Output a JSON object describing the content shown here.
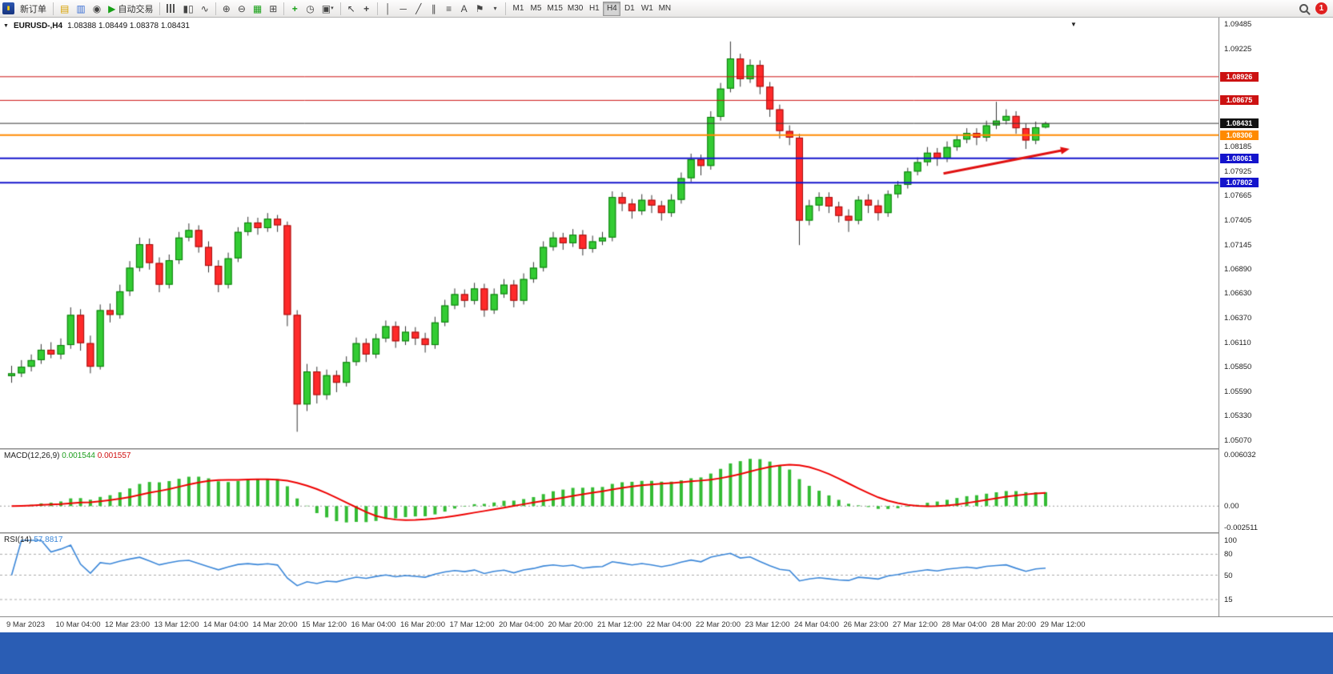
{
  "taskbar": {
    "color": "#2a5db4"
  },
  "toolbar": {
    "new_order": "新订单",
    "autotrade": "自动交易",
    "timeframes": [
      "M1",
      "M5",
      "M15",
      "M30",
      "H1",
      "H4",
      "D1",
      "W1",
      "MN"
    ],
    "active_timeframe": "H4",
    "notification_count": "1"
  },
  "icons": {
    "dropdown_triangle": "▼",
    "play": "▶",
    "market_watch": "▤",
    "data_window": "▥",
    "community": "◉",
    "candles_chart": "▮▯",
    "line_chart": "∿",
    "zoom_in": "⊕",
    "zoom_out": "⊖",
    "tile_windows": "▦",
    "new_chart": "⊞",
    "indicators": "+",
    "period": "◷",
    "templates": "▣",
    "chart_shift": "↦",
    "cursor": "↖",
    "crosshair": "+",
    "vline": "│",
    "hline": "─",
    "trendline": "╱",
    "channel": "∥",
    "fibonacci": "≡",
    "text_tool": "A",
    "label_tool": "⚑",
    "shapes_dropdown": "▾"
  },
  "chart": {
    "symbol": "EURUSD-,H4",
    "ohlc": "1.08388 1.08449 1.08378 1.08431"
  },
  "macd": {
    "title": "MACD(12,26,9)",
    "value1": "0.001544",
    "value2": "0.001557",
    "axis_top": "0.006032",
    "axis_zero": "0.00",
    "axis_bottom": "-0.002511"
  },
  "rsi": {
    "title": "RSI(14)",
    "value": "57.8817",
    "axis_labels": [
      "100",
      "80",
      "50",
      "15"
    ]
  },
  "chart_data": {
    "type": "candlestick",
    "title": "EURUSD-,H4",
    "symbol": "EURUSD",
    "timeframe": "H4",
    "current_ohlc": {
      "open": 1.08388,
      "high": 1.08449,
      "low": 1.08378,
      "close": 1.08431
    },
    "y_axis": {
      "min": 1.0507,
      "max": 1.09485,
      "gridlines": [
        "1.09485",
        "1.09225",
        "1.08185",
        "1.07925",
        "1.07665",
        "1.07405",
        "1.07145",
        "1.06890",
        "1.06630",
        "1.06370",
        "1.06110",
        "1.05850",
        "1.05590",
        "1.05330",
        "1.05070"
      ]
    },
    "x_labels": [
      "9 Mar 2023",
      "10 Mar 04:00",
      "12 Mar 23:00",
      "13 Mar 12:00",
      "14 Mar 04:00",
      "14 Mar 20:00",
      "15 Mar 12:00",
      "16 Mar 04:00",
      "16 Mar 20:00",
      "17 Mar 12:00",
      "20 Mar 04:00",
      "20 Mar 20:00",
      "21 Mar 12:00",
      "22 Mar 04:00",
      "22 Mar 20:00",
      "23 Mar 12:00",
      "24 Mar 04:00",
      "26 Mar 23:00",
      "27 Mar 12:00",
      "28 Mar 04:00",
      "28 Mar 20:00",
      "29 Mar 12:00"
    ],
    "levels": [
      {
        "price": 1.08926,
        "label": "1.08926",
        "line": "#cc1111",
        "badge": "#cc1111",
        "width": 1
      },
      {
        "price": 1.08675,
        "label": "1.08675",
        "line": "#cc1111",
        "badge": "#cc1111",
        "width": 1
      },
      {
        "price": 1.08431,
        "label": "1.08431",
        "line": "#333333",
        "badge": "#111111",
        "width": 1,
        "current": true
      },
      {
        "price": 1.08306,
        "label": "1.08306",
        "line": "#ff8a00",
        "badge": "#ff8a00",
        "width": 2
      },
      {
        "price": 1.08061,
        "label": "1.08061",
        "line": "#1414cc",
        "badge": "#1414cc",
        "width": 2
      },
      {
        "price": 1.07802,
        "label": "1.07802",
        "line": "#1414cc",
        "badge": "#1414cc",
        "width": 2
      }
    ],
    "annotations": [
      {
        "type": "arrow",
        "color": "#e01010",
        "from_bar": 95,
        "from_price": 1.079,
        "to_bar": 107.8,
        "to_price": 1.0816
      }
    ],
    "colors": {
      "up": "#33cc33",
      "up_border": "#0d7a0d",
      "down": "#ff2a2a",
      "down_border": "#a01010",
      "wick": "#333333",
      "macd_hist": "#33bb33",
      "macd_signal": "#ee0000",
      "rsi_line": "#3a86d8"
    },
    "indicators": [
      {
        "name": "MACD",
        "params": [
          12,
          26,
          9
        ],
        "display_values": [
          0.001544,
          0.001557
        ],
        "scale_max": 0.006032,
        "scale_min": -0.002511
      },
      {
        "name": "RSI",
        "params": [
          14
        ],
        "display_value": 57.8817,
        "levels": [
          80,
          50,
          15
        ],
        "scale": [
          0,
          100
        ]
      }
    ],
    "candles": [
      [
        1.0575,
        1.0586,
        1.0568,
        1.0578
      ],
      [
        1.0578,
        1.0592,
        1.0574,
        1.0585
      ],
      [
        1.0585,
        1.0598,
        1.058,
        1.0592
      ],
      [
        1.0592,
        1.0609,
        1.0588,
        1.0603
      ],
      [
        1.0603,
        1.0611,
        1.0594,
        1.0598
      ],
      [
        1.0598,
        1.0615,
        1.0593,
        1.0608
      ],
      [
        1.0608,
        1.0648,
        1.0604,
        1.064
      ],
      [
        1.064,
        1.0646,
        1.0602,
        1.061
      ],
      [
        1.061,
        1.0618,
        1.0578,
        1.0585
      ],
      [
        1.0585,
        1.0651,
        1.0582,
        1.0645
      ],
      [
        1.0645,
        1.0652,
        1.0632,
        1.064
      ],
      [
        1.064,
        1.0672,
        1.0636,
        1.0665
      ],
      [
        1.0665,
        1.0697,
        1.066,
        1.069
      ],
      [
        1.069,
        1.0722,
        1.0686,
        1.0715
      ],
      [
        1.0715,
        1.0721,
        1.0688,
        1.0695
      ],
      [
        1.0695,
        1.0701,
        1.0664,
        1.0672
      ],
      [
        1.0672,
        1.0704,
        1.0668,
        1.0698
      ],
      [
        1.0698,
        1.0728,
        1.0694,
        1.0722
      ],
      [
        1.0722,
        1.0737,
        1.0718,
        1.073
      ],
      [
        1.073,
        1.0735,
        1.0706,
        1.0712
      ],
      [
        1.0712,
        1.0718,
        1.0685,
        1.0692
      ],
      [
        1.0692,
        1.0698,
        1.0664,
        1.0672
      ],
      [
        1.0672,
        1.0706,
        1.0668,
        1.07
      ],
      [
        1.07,
        1.0733,
        1.0696,
        1.0728
      ],
      [
        1.0728,
        1.0744,
        1.0724,
        1.0738
      ],
      [
        1.0738,
        1.0743,
        1.0725,
        1.0732
      ],
      [
        1.0732,
        1.0748,
        1.0728,
        1.0742
      ],
      [
        1.0742,
        1.0746,
        1.0728,
        1.0735
      ],
      [
        1.0735,
        1.0739,
        1.0628,
        1.064
      ],
      [
        1.064,
        1.0645,
        1.0516,
        1.0545
      ],
      [
        1.0545,
        1.0588,
        1.0538,
        1.058
      ],
      [
        1.058,
        1.0585,
        1.0546,
        1.0555
      ],
      [
        1.0555,
        1.0582,
        1.055,
        1.0576
      ],
      [
        1.0576,
        1.0581,
        1.0558,
        1.0568
      ],
      [
        1.0568,
        1.0596,
        1.0564,
        1.059
      ],
      [
        1.059,
        1.0616,
        1.0586,
        1.061
      ],
      [
        1.061,
        1.0615,
        1.059,
        1.0598
      ],
      [
        1.0598,
        1.062,
        1.0594,
        1.0615
      ],
      [
        1.0615,
        1.0634,
        1.0611,
        1.0628
      ],
      [
        1.0628,
        1.0633,
        1.0605,
        1.0612
      ],
      [
        1.0612,
        1.0628,
        1.0608,
        1.0622
      ],
      [
        1.0622,
        1.0627,
        1.0608,
        1.0615
      ],
      [
        1.0615,
        1.0621,
        1.06,
        1.0608
      ],
      [
        1.0608,
        1.0638,
        1.0604,
        1.0632
      ],
      [
        1.0632,
        1.0656,
        1.0628,
        1.065
      ],
      [
        1.065,
        1.0668,
        1.0646,
        1.0662
      ],
      [
        1.0662,
        1.0667,
        1.0648,
        1.0655
      ],
      [
        1.0655,
        1.0674,
        1.0651,
        1.0668
      ],
      [
        1.0668,
        1.0673,
        1.0638,
        1.0645
      ],
      [
        1.0645,
        1.0668,
        1.0641,
        1.0662
      ],
      [
        1.0662,
        1.0678,
        1.0658,
        1.0672
      ],
      [
        1.0672,
        1.0677,
        1.0648,
        1.0655
      ],
      [
        1.0655,
        1.0684,
        1.0651,
        1.0678
      ],
      [
        1.0678,
        1.0696,
        1.0674,
        1.069
      ],
      [
        1.069,
        1.0718,
        1.0686,
        1.0712
      ],
      [
        1.0712,
        1.0728,
        1.0708,
        1.0722
      ],
      [
        1.0722,
        1.0727,
        1.0709,
        1.0716
      ],
      [
        1.0716,
        1.0731,
        1.0712,
        1.0725
      ],
      [
        1.0725,
        1.073,
        1.0703,
        1.071
      ],
      [
        1.071,
        1.0724,
        1.0706,
        1.0718
      ],
      [
        1.0718,
        1.0728,
        1.0714,
        1.0722
      ],
      [
        1.0722,
        1.0771,
        1.0718,
        1.0765
      ],
      [
        1.0765,
        1.077,
        1.075,
        1.0758
      ],
      [
        1.0758,
        1.0763,
        1.0742,
        1.075
      ],
      [
        1.075,
        1.0768,
        1.0746,
        1.0762
      ],
      [
        1.0762,
        1.0767,
        1.0748,
        1.0756
      ],
      [
        1.0756,
        1.0761,
        1.074,
        1.0748
      ],
      [
        1.0748,
        1.0768,
        1.0744,
        1.0762
      ],
      [
        1.0762,
        1.0791,
        1.0758,
        1.0785
      ],
      [
        1.0785,
        1.0811,
        1.0781,
        1.0805
      ],
      [
        1.0805,
        1.081,
        1.0788,
        1.0798
      ],
      [
        1.0798,
        1.0856,
        1.0794,
        1.085
      ],
      [
        1.085,
        1.0886,
        1.0846,
        1.088
      ],
      [
        1.088,
        1.093,
        1.0876,
        1.0912
      ],
      [
        1.0912,
        1.0917,
        1.0882,
        1.089
      ],
      [
        1.089,
        1.0911,
        1.0886,
        1.0905
      ],
      [
        1.0905,
        1.091,
        1.0874,
        1.0882
      ],
      [
        1.0882,
        1.0887,
        1.085,
        1.0858
      ],
      [
        1.0858,
        1.0863,
        1.0827,
        1.0835
      ],
      [
        1.0835,
        1.0841,
        1.082,
        1.0828
      ],
      [
        1.0828,
        1.0832,
        1.0714,
        1.074
      ],
      [
        1.074,
        1.0762,
        1.0735,
        1.0756
      ],
      [
        1.0756,
        1.077,
        1.075,
        1.0765
      ],
      [
        1.0765,
        1.077,
        1.0748,
        1.0755
      ],
      [
        1.0755,
        1.076,
        1.0738,
        1.0745
      ],
      [
        1.0745,
        1.0752,
        1.0728,
        1.074
      ],
      [
        1.074,
        1.0766,
        1.0736,
        1.0762
      ],
      [
        1.0762,
        1.0768,
        1.0748,
        1.0756
      ],
      [
        1.0756,
        1.0762,
        1.074,
        1.0748
      ],
      [
        1.0748,
        1.0772,
        1.0744,
        1.0768
      ],
      [
        1.0768,
        1.0782,
        1.0764,
        1.0778
      ],
      [
        1.0778,
        1.0796,
        1.0774,
        1.0792
      ],
      [
        1.0792,
        1.0807,
        1.0788,
        1.0802
      ],
      [
        1.0802,
        1.0818,
        1.0798,
        1.0812
      ],
      [
        1.0812,
        1.0817,
        1.0798,
        1.0806
      ],
      [
        1.0806,
        1.0824,
        1.0802,
        1.0818
      ],
      [
        1.0818,
        1.0831,
        1.0814,
        1.0826
      ],
      [
        1.0826,
        1.0838,
        1.0822,
        1.0833
      ],
      [
        1.0833,
        1.0838,
        1.082,
        1.0828
      ],
      [
        1.0828,
        1.0846,
        1.0824,
        1.0841
      ],
      [
        1.0841,
        1.0866,
        1.0837,
        1.0846
      ],
      [
        1.0846,
        1.0858,
        1.0842,
        1.0851
      ],
      [
        1.0851,
        1.0856,
        1.0832,
        1.0838
      ],
      [
        1.0838,
        1.0843,
        1.0816,
        1.0825
      ],
      [
        1.0825,
        1.0845,
        1.0821,
        1.0839
      ],
      [
        1.08388,
        1.08449,
        1.08378,
        1.08431
      ]
    ]
  }
}
